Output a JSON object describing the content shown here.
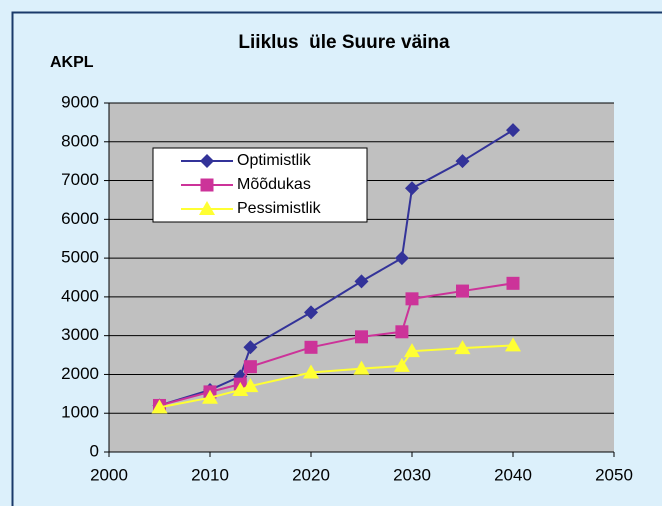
{
  "chart_data": {
    "type": "line",
    "title": "Liiklus  üle Suure väina",
    "y_label": "AKPL",
    "x": [
      2005,
      2010,
      2013,
      2014,
      2020,
      2025,
      2029,
      2030,
      2035,
      2040
    ],
    "series": [
      {
        "name": "Optimistlik",
        "color": "#333399",
        "marker": "diamond",
        "values": [
          1200,
          1600,
          1950,
          2700,
          3600,
          4400,
          5000,
          6800,
          7500,
          8300
        ]
      },
      {
        "name": "Mõõdukas",
        "color": "#cc3399",
        "marker": "square",
        "values": [
          1200,
          1550,
          1750,
          2200,
          2700,
          2970,
          3100,
          3950,
          4150,
          4350
        ]
      },
      {
        "name": "Pessimistlik",
        "color": "#ffff33",
        "marker": "triangle",
        "values": [
          1150,
          1400,
          1600,
          1700,
          2050,
          2150,
          2220,
          2600,
          2680,
          2750
        ]
      }
    ],
    "xlim": [
      2000,
      2050
    ],
    "xticks": [
      2000,
      2010,
      2020,
      2030,
      2040,
      2050
    ],
    "ylim": [
      0,
      9000
    ],
    "yticks": [
      0,
      1000,
      2000,
      3000,
      4000,
      5000,
      6000,
      7000,
      8000,
      9000
    ],
    "grid": true,
    "legend": "upper left"
  }
}
